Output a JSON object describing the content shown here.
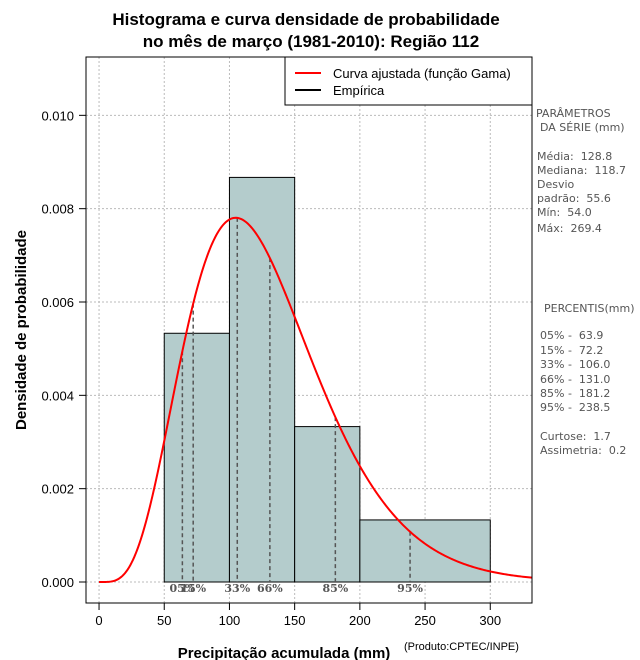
{
  "chart_data": {
    "type": "histogram",
    "title": [
      "Histograma e curva densidade de probabilidade",
      "no mês de março (1981-2010): Região 112"
    ],
    "xlabel": "Precipitação acumulada (mm)",
    "ylabel": "Densidade de probabilidade",
    "xlim": [
      -10,
      332
    ],
    "ylim": [
      -0.00045,
      0.01125
    ],
    "xticks": [
      0,
      50,
      100,
      150,
      200,
      250,
      300
    ],
    "yticks": [
      0.0,
      0.002,
      0.004,
      0.006,
      0.008,
      0.01
    ],
    "ytick_labels": [
      "0.000",
      "0.002",
      "0.004",
      "0.006",
      "0.008",
      "0.010"
    ],
    "grid": true,
    "bins": [
      {
        "start": 50,
        "end": 100,
        "density": 0.00533
      },
      {
        "start": 100,
        "end": 150,
        "density": 0.00867
      },
      {
        "start": 150,
        "end": 200,
        "density": 0.00333
      },
      {
        "start": 200,
        "end": 300,
        "density": 0.00133
      }
    ],
    "fitted_curve": {
      "name": "Curva ajustada (função Gama)",
      "distribution": "gamma",
      "mean": 128.8,
      "sd": 55.6,
      "color": "#ff0000"
    },
    "percentile_lines": [
      {
        "label": "05%",
        "value": 63.9
      },
      {
        "label": "15%",
        "value": 72.2
      },
      {
        "label": "33%",
        "value": 106.0
      },
      {
        "label": "66%",
        "value": 131.0
      },
      {
        "label": "85%",
        "value": 181.2
      },
      {
        "label": "95%",
        "value": 238.5
      }
    ],
    "legend": [
      {
        "label": "Curva ajustada (função Gama)",
        "color": "#ff0000"
      },
      {
        "label": "Empírica",
        "color": "#000000"
      }
    ],
    "legend_position": "top-right",
    "bar_color": "#b4cccc"
  },
  "side_panel": {
    "params_title": "PARÂMETROS",
    "params_subtitle": "DA SÉRIE (mm)",
    "media": "Média:  128.8",
    "mediana": "Mediana:  118.7",
    "desvio": "Desvio",
    "padrao": "padrão:  55.6",
    "min": "Mín:  54.0",
    "max": "Máx:  269.4",
    "percentis_title": "PERCENTIS(mm)",
    "p05": "05% -  63.9",
    "p15": "15% -  72.2",
    "p33": "33% -  106.0",
    "p66": "66% -  131.0",
    "p85": "85% -  181.2",
    "p95": "95% -  238.5",
    "curtose": "Curtose:  1.7",
    "assimetria": "Assimetria:  0.2"
  },
  "credit": "(Produto:CPTEC/INPE)"
}
